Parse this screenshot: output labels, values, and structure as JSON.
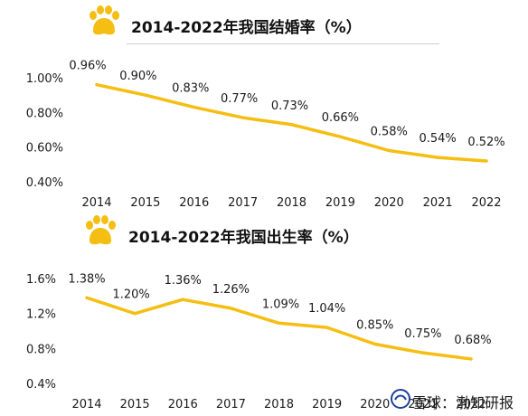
{
  "chart_data": [
    {
      "type": "line",
      "title": "2014-2022年我国结婚率（%）",
      "categories": [
        "2014",
        "2015",
        "2016",
        "2017",
        "2018",
        "2019",
        "2020",
        "2021",
        "2022"
      ],
      "values": [
        0.96,
        0.9,
        0.83,
        0.77,
        0.73,
        0.66,
        0.58,
        0.54,
        0.52
      ],
      "data_labels": [
        "0.96%",
        "0.90%",
        "0.83%",
        "0.77%",
        "0.73%",
        "0.66%",
        "0.58%",
        "0.54%",
        "0.52%"
      ],
      "yticks": [
        "1.00%",
        "0.80%",
        "0.60%",
        "0.40%"
      ],
      "ytick_values": [
        1.0,
        0.8,
        0.6,
        0.4
      ],
      "ylim": [
        0.4,
        1.0
      ],
      "grid": false,
      "color": "#F5BE12"
    },
    {
      "type": "line",
      "title": "2014-2022年我国出生率（%）",
      "categories": [
        "2014",
        "2015",
        "2016",
        "2017",
        "2018",
        "2019",
        "2020",
        "2021",
        "2022"
      ],
      "values": [
        1.38,
        1.2,
        1.36,
        1.26,
        1.09,
        1.04,
        0.85,
        0.75,
        0.68
      ],
      "data_labels": [
        "1.38%",
        "1.20%",
        "1.36%",
        "1.26%",
        "1.09%",
        "1.04%",
        "0.85%",
        "0.75%",
        "0.68%"
      ],
      "yticks": [
        "1.6%",
        "1.2%",
        "0.8%",
        "0.4%"
      ],
      "ytick_values": [
        1.6,
        1.2,
        0.8,
        0.4
      ],
      "ylim": [
        0.4,
        1.6
      ],
      "grid": false,
      "color": "#F5BE12"
    }
  ],
  "icons": {
    "section_icon": "paw-icon",
    "color": "#F5BE12"
  },
  "watermark": {
    "text": "雪球：渤知研报",
    "icon": "snowball-icon"
  }
}
